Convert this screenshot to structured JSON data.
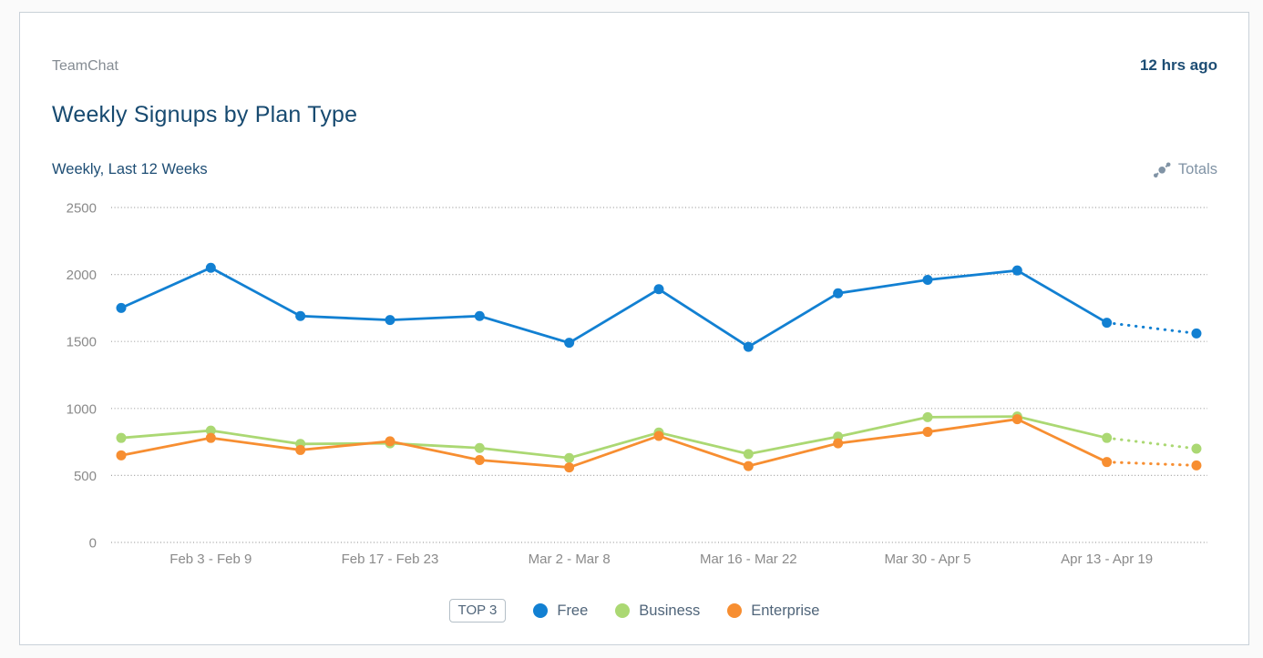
{
  "header": {
    "app_name": "TeamChat",
    "updated": "12 hrs ago",
    "title": "Weekly Signups by Plan Type"
  },
  "toolbar": {
    "subtitle": "Weekly, Last 12 Weeks",
    "totals_label": "Totals",
    "totals_icon": "trend-points-icon",
    "totals_color": "#8093a5"
  },
  "legend": {
    "badge": "TOP 3",
    "position": "bottom"
  },
  "colors": {
    "card_background": "#ffffff",
    "page_background": "#fafafa",
    "card_border": "#c9d1d8",
    "title_text": "#174a70",
    "muted_text": "#858c93",
    "axis_text": "#8a8a8a",
    "legend_text": "#50657a",
    "gridline": "#a0a0a0"
  },
  "chart_data": {
    "type": "line",
    "title": "Weekly Signups by Plan Type",
    "subtitle": "Weekly, Last 12 Weeks",
    "x_tick_labels": [
      "",
      "Feb 3 - Feb 9",
      "",
      "Feb 17 - Feb 23",
      "",
      "Mar 2 - Mar 8",
      "",
      "Mar 16 - Mar 22",
      "",
      "Mar 30 - Apr 5",
      "",
      "Apr 13 - Apr 19",
      ""
    ],
    "series": [
      {
        "name": "Free",
        "color": "#1280d2",
        "values": [
          1750,
          2050,
          1690,
          1660,
          1690,
          1490,
          1890,
          1460,
          1860,
          1960,
          2030,
          1640,
          1560
        ]
      },
      {
        "name": "Business",
        "color": "#abd873",
        "values": [
          780,
          835,
          735,
          740,
          705,
          630,
          820,
          660,
          790,
          935,
          940,
          780,
          700
        ]
      },
      {
        "name": "Enterprise",
        "color": "#f78e31",
        "values": [
          650,
          780,
          690,
          755,
          615,
          560,
          795,
          570,
          740,
          825,
          920,
          600,
          575
        ]
      }
    ],
    "ylim": [
      0,
      2500
    ],
    "yticks": [
      0,
      500,
      1000,
      1500,
      2000,
      2500
    ],
    "grid": "horizontal-dotted",
    "legend_position": "bottom",
    "dotted_last_segment": true
  }
}
